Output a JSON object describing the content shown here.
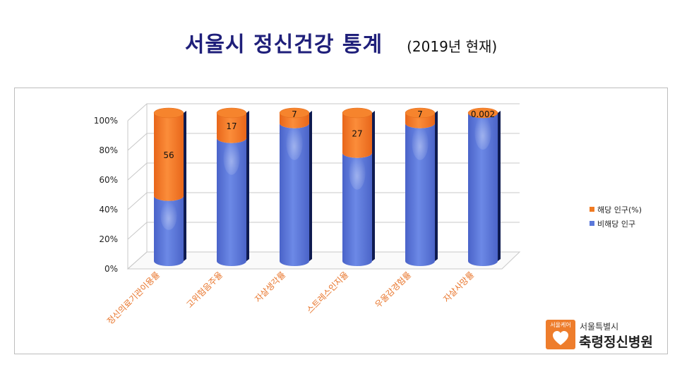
{
  "title": {
    "main": "서울시 정신건강 통계",
    "sub": "(2019년 현재)"
  },
  "chart_data": {
    "type": "bar",
    "stacked": "percent",
    "categories": [
      "정신의료기관이용률",
      "고위험음주율",
      "자살생각률",
      "스트레스인지율",
      "우울감경험률",
      "자살사망률"
    ],
    "series": [
      {
        "name": "해당 인구(%)",
        "color": "#f07a22",
        "values": [
          56,
          17,
          7,
          27,
          7,
          0.002
        ],
        "labels": [
          "56",
          "17",
          "7",
          "27",
          "7",
          "0.002"
        ]
      },
      {
        "name": "비해당 인구",
        "color": "#5b78da",
        "values": [
          44,
          83,
          93,
          73,
          93,
          99.998
        ]
      }
    ],
    "legend_position": "right",
    "y_ticks": [
      "0%",
      "20%",
      "40%",
      "60%",
      "80%",
      "100%"
    ],
    "ylim": [
      0,
      100
    ],
    "grid": true,
    "category_label_color": "#e8742a"
  },
  "logo": {
    "badge": "서울케어",
    "line1": "서울특별시",
    "line2": "축령정신병원",
    "color": "#ee7d2c"
  }
}
